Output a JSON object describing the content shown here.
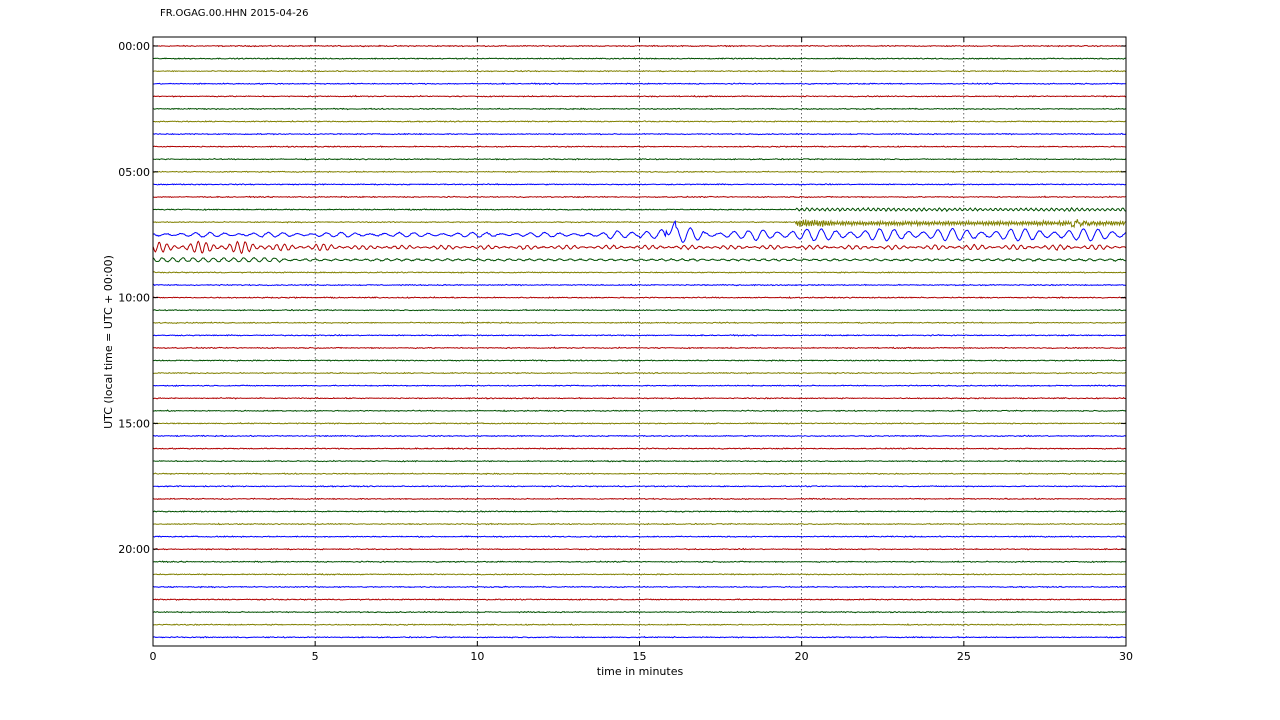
{
  "title": "FR.OGAG.00.HHN 2015-04-26",
  "chart_data": {
    "type": "line",
    "title": "FR.OGAG.00.HHN 2015-04-26",
    "xlabel": "time in minutes",
    "ylabel": "UTC (local time = UTC + 00:00)",
    "xlim": [
      0,
      30
    ],
    "xticks": [
      0,
      5,
      10,
      15,
      20,
      25,
      30
    ],
    "xtick_labels": [
      "0",
      "5",
      "10",
      "15",
      "20",
      "25",
      "30"
    ],
    "ylim_hours": [
      0,
      24
    ],
    "yticks_hours": [
      0,
      5,
      10,
      15,
      20
    ],
    "ytick_labels": [
      "00:00",
      "05:00",
      "10:00",
      "15:00",
      "20:00"
    ],
    "grid": true,
    "rows": 48,
    "row_minutes": 30,
    "colors": [
      "#b00000",
      "#005000",
      "#808000",
      "#0000ff"
    ],
    "series_description": "One seismogram trace per 30-minute row; colors cycle red, green, olive, blue",
    "events": [
      {
        "row": 14,
        "note": "large olive oscillations 20–30 min"
      },
      {
        "row": 15,
        "note": "large blue oscillations across whole row, strong after 15 min"
      },
      {
        "row": 16,
        "note": "red oscillations, strong 0–6 min"
      },
      {
        "row": 17,
        "note": "green moderate oscillations at start"
      }
    ]
  }
}
